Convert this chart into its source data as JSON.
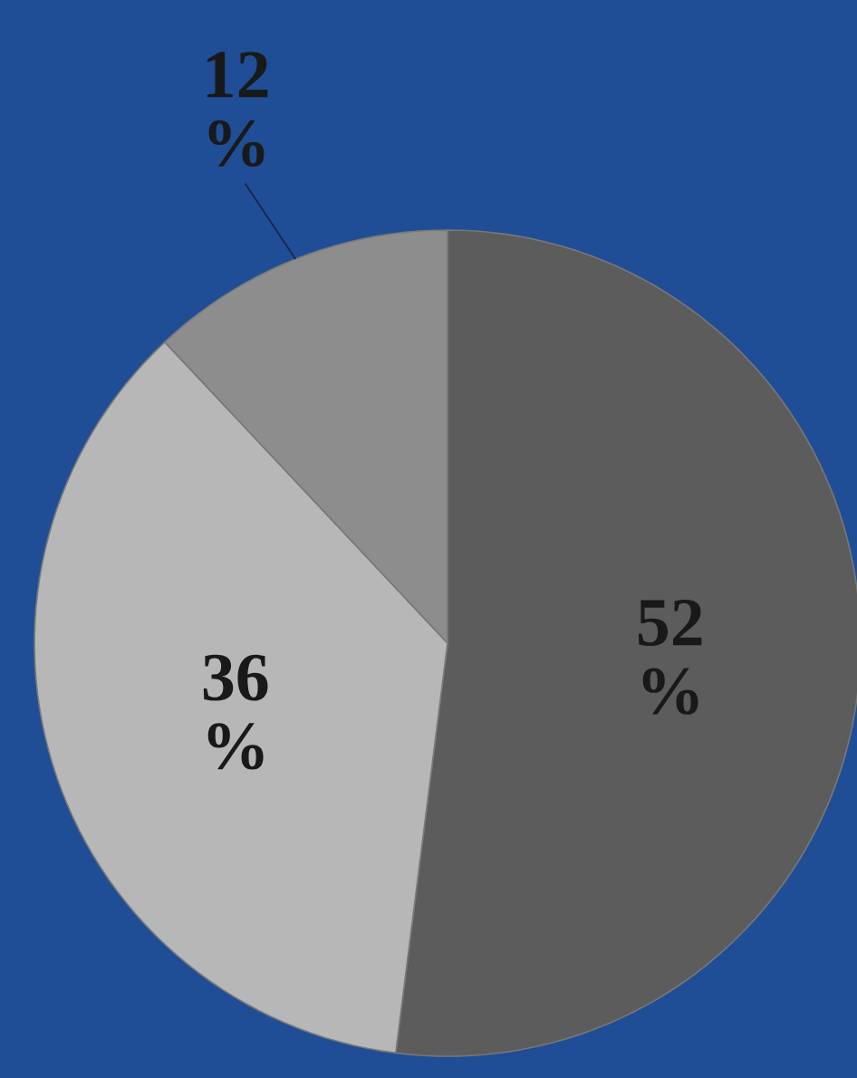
{
  "chart_data": {
    "type": "pie",
    "categories": [
      null,
      null,
      null
    ],
    "values": [
      52,
      36,
      12
    ],
    "colors": [
      "#5c5c5c",
      "#b7b7b7",
      "#8d8d8d"
    ],
    "value_labels": [
      "52 %",
      "36 %",
      "12 %"
    ]
  }
}
